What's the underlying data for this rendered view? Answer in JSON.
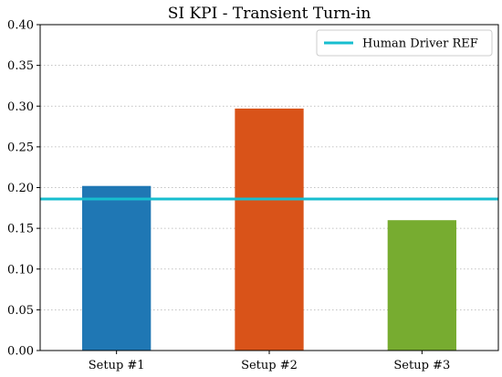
{
  "chart_data": {
    "type": "bar",
    "title": "SI KPI - Transient Turn-in",
    "xlabel": "",
    "ylabel": "",
    "categories": [
      "Setup #1",
      "Setup #2",
      "Setup #3"
    ],
    "values": [
      0.202,
      0.297,
      0.16
    ],
    "bar_colors": [
      "#1f77b4",
      "#d95319",
      "#77ac30"
    ],
    "ylim": [
      0,
      0.4
    ],
    "yticks": [
      0.0,
      0.05,
      0.1,
      0.15,
      0.2,
      0.25,
      0.3,
      0.35,
      0.4
    ],
    "ytick_labels": [
      "0.00",
      "0.05",
      "0.10",
      "0.15",
      "0.20",
      "0.25",
      "0.30",
      "0.35",
      "0.40"
    ],
    "grid": "horizontal dotted",
    "reference_line": {
      "label": "Human Driver REF",
      "value": 0.186,
      "color": "#17becf"
    },
    "legend_position": "top-right"
  }
}
